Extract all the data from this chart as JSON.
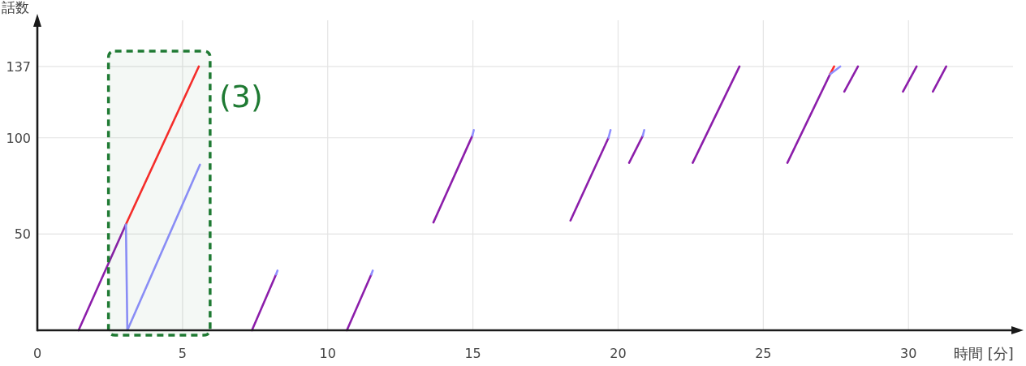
{
  "chart_data": {
    "type": "line",
    "xlabel": "時間 [分]",
    "ylabel": "話数",
    "xlim": [
      0,
      33.6
    ],
    "ylim": [
      0,
      161
    ],
    "xticks": [
      0,
      5,
      10,
      15,
      20,
      25,
      30
    ],
    "yticks": [
      50,
      100,
      137
    ],
    "grid": true,
    "bands": [
      {
        "axis": "x",
        "from": 2.45,
        "to": 5.95,
        "label": "(3)",
        "color": "#1f7a33"
      }
    ],
    "series": [
      {
        "color": "#8c1eaa",
        "x": [
          1.42,
          3.05,
          null,
          7.39,
          8.22,
          null,
          10.66,
          11.5,
          null,
          13.64,
          14.98,
          null,
          18.36,
          19.67,
          null,
          20.38,
          20.85,
          null,
          22.57,
          24.18,
          null,
          25.83,
          27.3,
          null,
          27.79,
          28.26,
          null,
          29.81,
          30.28,
          null,
          30.84,
          31.3
        ],
        "values": [
          0,
          55,
          null,
          0,
          29,
          null,
          0,
          29,
          null,
          56,
          101,
          null,
          57,
          100,
          null,
          87,
          101,
          null,
          87,
          137,
          null,
          87,
          133,
          null,
          124,
          137,
          null,
          124,
          137,
          null,
          124,
          137
        ]
      },
      {
        "color": "#ff2a2a",
        "x": [
          3.05,
          5.56,
          null,
          27.3,
          27.44
        ],
        "values": [
          55,
          137,
          null,
          133,
          137
        ]
      },
      {
        "color": "#8f8fff",
        "x": [
          3.05,
          3.1,
          5.6,
          null,
          8.22,
          8.27,
          null,
          11.5,
          11.55,
          null,
          14.98,
          15.03,
          null,
          19.67,
          19.74,
          null,
          20.85,
          20.9,
          null,
          27.3,
          27.65
        ],
        "values": [
          55,
          0,
          86,
          null,
          29,
          31,
          null,
          29,
          31,
          null,
          101,
          104,
          null,
          100,
          104,
          null,
          101,
          104,
          null,
          133,
          137
        ]
      }
    ]
  }
}
